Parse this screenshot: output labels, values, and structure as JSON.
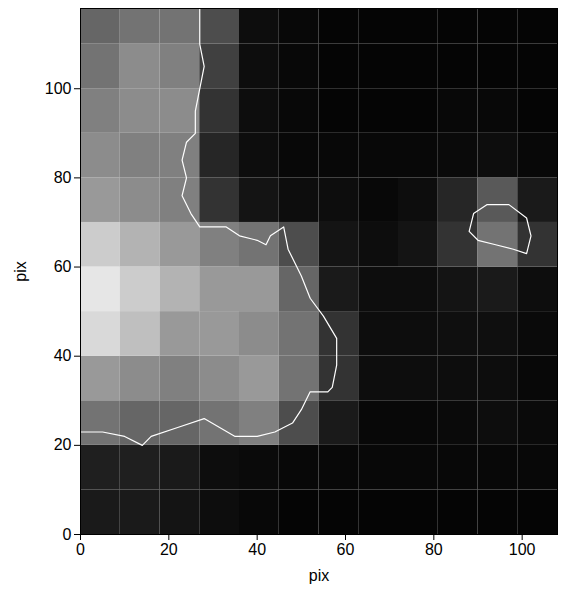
{
  "chart_data": {
    "type": "heatmap",
    "xlabel": "pix",
    "ylabel": "pix",
    "xlim": [
      0,
      108
    ],
    "ylim": [
      0,
      118
    ],
    "xticks": [
      0,
      20,
      40,
      60,
      80,
      100
    ],
    "yticks": [
      0,
      20,
      40,
      60,
      80,
      100
    ],
    "x_edges": [
      0,
      9,
      18,
      27,
      36,
      45,
      54,
      63,
      72,
      81,
      90,
      99,
      108
    ],
    "y_edges": [
      0,
      10,
      20,
      30,
      40,
      50,
      60,
      70,
      80,
      90,
      100,
      110,
      118
    ],
    "zlim": [
      0,
      1
    ],
    "z": [
      [
        0.1,
        0.1,
        0.08,
        0.05,
        0.03,
        0.02,
        0.02,
        0.02,
        0.02,
        0.02,
        0.02,
        0.02
      ],
      [
        0.12,
        0.12,
        0.1,
        0.05,
        0.04,
        0.03,
        0.03,
        0.03,
        0.03,
        0.03,
        0.03,
        0.03
      ],
      [
        0.45,
        0.4,
        0.4,
        0.45,
        0.5,
        0.3,
        0.1,
        0.03,
        0.03,
        0.04,
        0.05,
        0.04
      ],
      [
        0.6,
        0.55,
        0.5,
        0.55,
        0.6,
        0.45,
        0.2,
        0.05,
        0.05,
        0.05,
        0.05,
        0.03
      ],
      [
        0.85,
        0.75,
        0.6,
        0.6,
        0.55,
        0.45,
        0.2,
        0.05,
        0.05,
        0.06,
        0.06,
        0.04
      ],
      [
        0.9,
        0.8,
        0.7,
        0.6,
        0.6,
        0.4,
        0.1,
        0.05,
        0.05,
        0.08,
        0.1,
        0.05
      ],
      [
        0.8,
        0.7,
        0.6,
        0.5,
        0.45,
        0.3,
        0.08,
        0.05,
        0.08,
        0.2,
        0.45,
        0.2
      ],
      [
        0.6,
        0.55,
        0.5,
        0.2,
        0.08,
        0.05,
        0.05,
        0.03,
        0.05,
        0.15,
        0.35,
        0.1
      ],
      [
        0.55,
        0.5,
        0.5,
        0.15,
        0.05,
        0.03,
        0.03,
        0.03,
        0.03,
        0.04,
        0.05,
        0.03
      ],
      [
        0.5,
        0.55,
        0.55,
        0.2,
        0.05,
        0.03,
        0.02,
        0.02,
        0.02,
        0.03,
        0.03,
        0.02
      ],
      [
        0.45,
        0.55,
        0.5,
        0.25,
        0.05,
        0.03,
        0.02,
        0.02,
        0.02,
        0.02,
        0.02,
        0.02
      ],
      [
        0.4,
        0.45,
        0.45,
        0.3,
        0.05,
        0.03,
        0.02,
        0.02,
        0.02,
        0.02,
        0.02,
        0.02
      ]
    ],
    "contours": [
      {
        "color": "white",
        "x": [
          27,
          27,
          28,
          26,
          26,
          24,
          23,
          24,
          23,
          25,
          27,
          33,
          36,
          40,
          42,
          43,
          46,
          47,
          50,
          52,
          55,
          58,
          58,
          57,
          56,
          52,
          51,
          50,
          48,
          46,
          44,
          40,
          35,
          28,
          22,
          16,
          14,
          10,
          5,
          0
        ],
        "y": [
          118,
          110,
          105,
          95,
          90,
          88,
          84,
          80,
          76,
          72,
          69,
          69,
          67,
          66,
          65,
          67,
          69,
          64,
          58,
          53,
          49,
          44,
          38,
          33,
          32,
          32,
          30,
          28,
          25,
          24,
          23,
          22,
          22,
          26,
          24,
          22,
          20,
          22,
          23,
          23
        ]
      },
      {
        "color": "white",
        "x": [
          88,
          89,
          92,
          97,
          101,
          102,
          101,
          98,
          94,
          90,
          88
        ],
        "y": [
          68,
          72,
          74,
          74,
          71,
          67,
          63,
          64,
          65,
          66,
          68
        ]
      }
    ]
  }
}
